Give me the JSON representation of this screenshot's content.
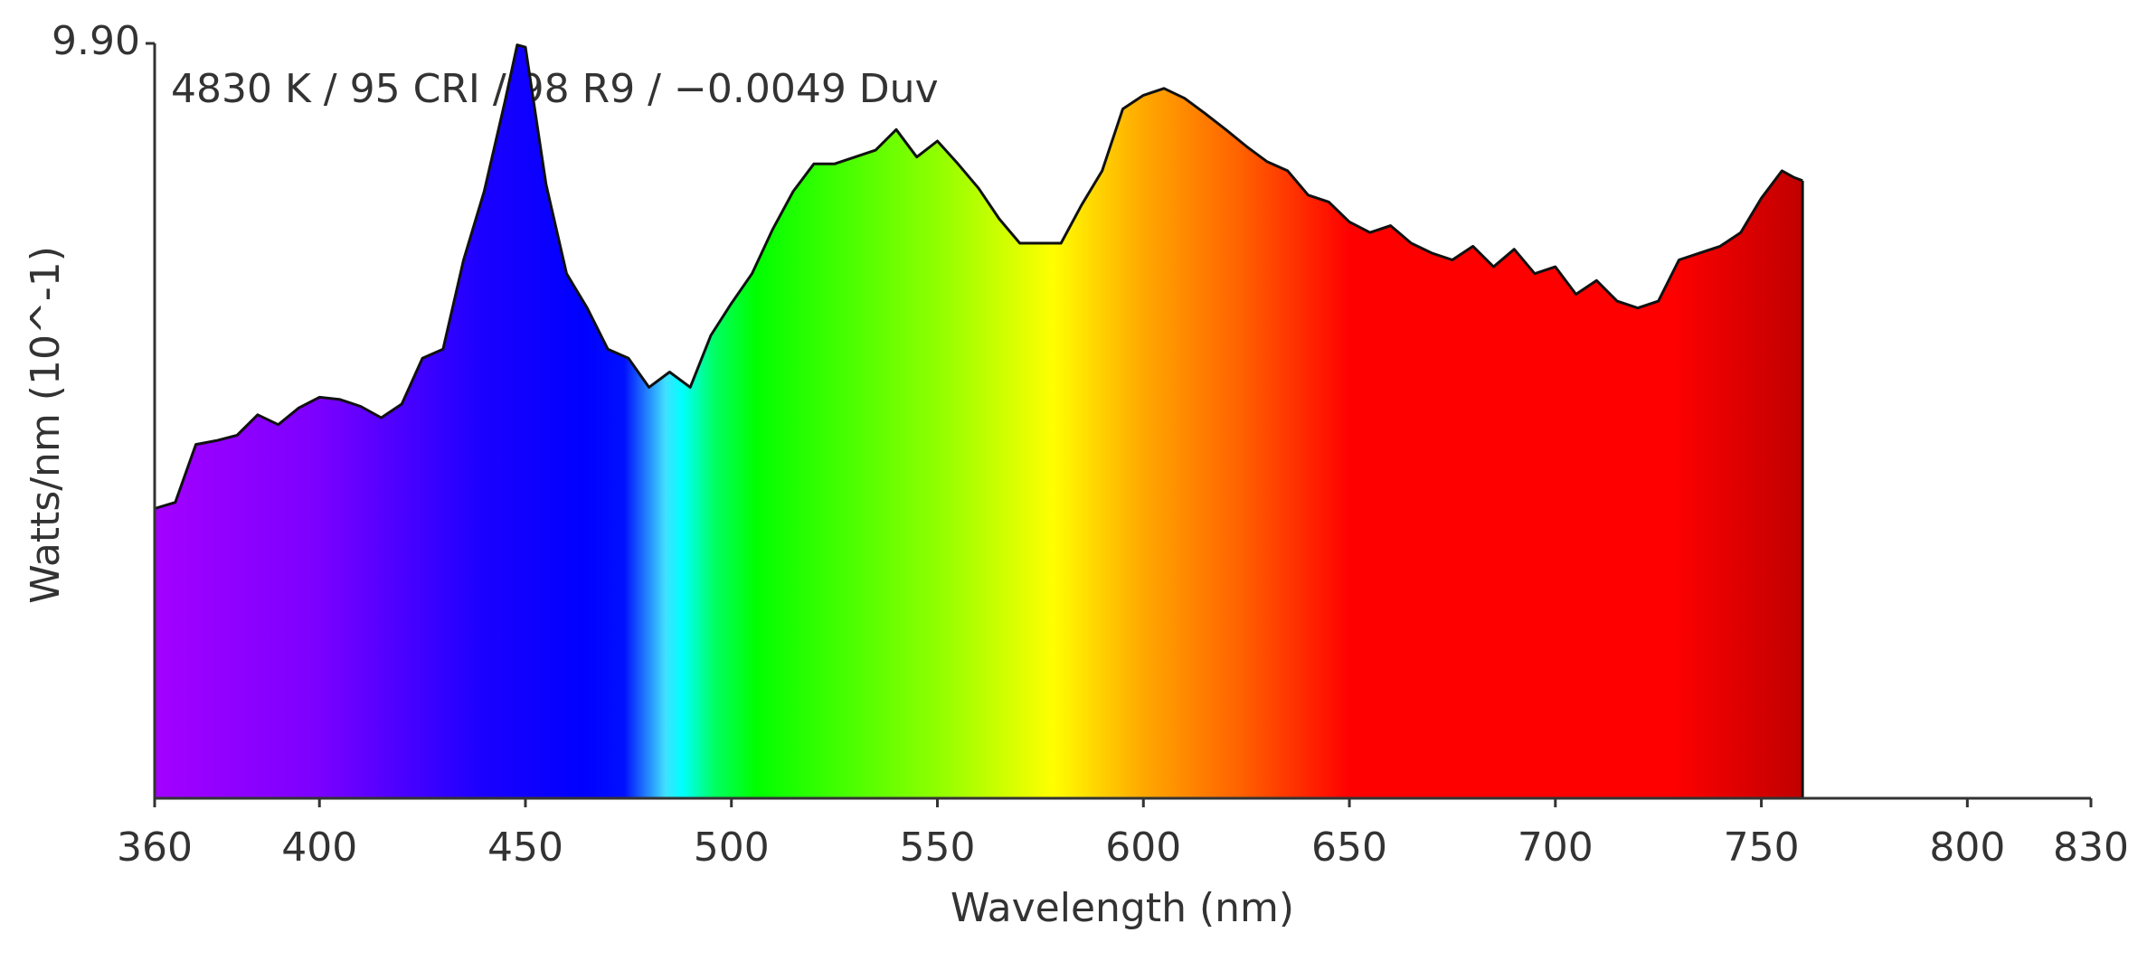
{
  "chart_data": {
    "type": "area",
    "annotation": "4830 K / 95 CRI / 98 R9 / −0.0049 Duv",
    "x_label": "Wavelength (nm)",
    "y_label": "Watts/nm (10^-1)",
    "x": [
      360,
      365,
      370,
      375,
      380,
      385,
      390,
      395,
      400,
      405,
      410,
      415,
      420,
      425,
      430,
      435,
      440,
      445,
      448,
      450,
      455,
      460,
      465,
      470,
      475,
      480,
      485,
      490,
      495,
      500,
      505,
      510,
      515,
      520,
      525,
      530,
      535,
      540,
      545,
      550,
      555,
      560,
      565,
      570,
      575,
      580,
      585,
      590,
      595,
      600,
      605,
      610,
      615,
      620,
      625,
      630,
      635,
      640,
      645,
      650,
      655,
      660,
      665,
      670,
      675,
      680,
      685,
      690,
      695,
      700,
      705,
      710,
      715,
      720,
      725,
      730,
      735,
      740,
      745,
      750,
      755,
      758,
      760
    ],
    "values": [
      3.8,
      3.88,
      4.64,
      4.69,
      4.76,
      5.03,
      4.9,
      5.12,
      5.26,
      5.23,
      5.14,
      4.99,
      5.17,
      5.77,
      5.89,
      7.06,
      7.96,
      9.13,
      9.88,
      9.85,
      8.05,
      6.88,
      6.43,
      5.89,
      5.77,
      5.39,
      5.59,
      5.39,
      6.07,
      6.49,
      6.88,
      7.46,
      7.96,
      8.32,
      8.32,
      8.41,
      8.5,
      8.77,
      8.41,
      8.62,
      8.32,
      8.0,
      7.6,
      7.28,
      7.28,
      7.28,
      7.78,
      8.23,
      9.04,
      9.22,
      9.31,
      9.18,
      8.98,
      8.77,
      8.55,
      8.35,
      8.23,
      7.91,
      7.82,
      7.56,
      7.42,
      7.51,
      7.28,
      7.15,
      7.06,
      7.24,
      6.97,
      7.2,
      6.88,
      6.97,
      6.61,
      6.79,
      6.52,
      6.43,
      6.52,
      7.06,
      7.15,
      7.24,
      7.42,
      7.87,
      8.23,
      8.14,
      8.1
    ],
    "xlim": [
      360,
      830
    ],
    "xticks": [
      360,
      400,
      450,
      500,
      550,
      600,
      650,
      700,
      750,
      800,
      830
    ],
    "ylim": [
      0,
      9.9
    ],
    "yticks": [
      {
        "value": 9.9,
        "label": "9.90"
      }
    ]
  }
}
